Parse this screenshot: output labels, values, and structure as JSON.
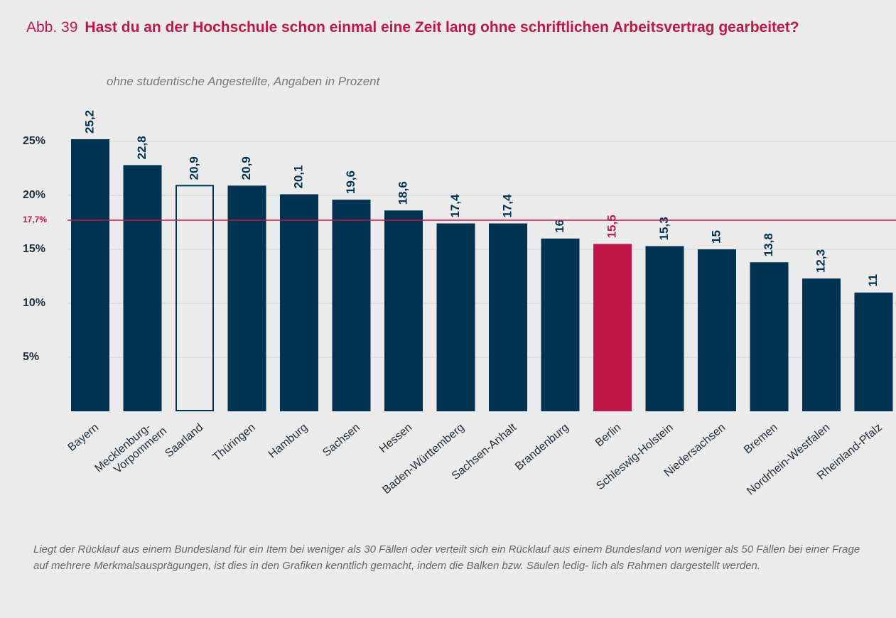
{
  "chart_data": {
    "type": "bar",
    "figure_label": "Abb. 39",
    "title": "Hast du an der Hochschule schon einmal eine Zeit lang ohne schriftlichen Arbeitsvertrag gearbeitet?",
    "subtitle": "ohne studentische Angestellte, Angaben in Prozent",
    "categories": [
      "Bayern",
      "Mecklenburg-\nVorpommern",
      "Saarland",
      "Thüringen",
      "Hamburg",
      "Sachsen",
      "Hessen",
      "Baden-Württemberg",
      "Sachsen-Anhalt",
      "Brandenburg",
      "Berlin",
      "Schleswig-Holstein",
      "Niedersachsen",
      "Bremen",
      "Nordrhein-Westfalen",
      "Rheinland-Pfalz"
    ],
    "values": [
      25.2,
      22.8,
      20.9,
      20.9,
      20.1,
      19.6,
      18.6,
      17.4,
      17.4,
      16,
      15.5,
      15.3,
      15,
      13.8,
      12.3,
      11
    ],
    "value_labels": [
      "25,2",
      "22,8",
      "20,9",
      "20,9",
      "20,1",
      "19,6",
      "18,6",
      "17,4",
      "17,4",
      "16",
      "15,5",
      "15,3",
      "15",
      "13,8",
      "12,3",
      "11"
    ],
    "colors": [
      "#003352",
      "#003352",
      "#003352",
      "#003352",
      "#003352",
      "#003352",
      "#003352",
      "#003352",
      "#003352",
      "#003352",
      "#c0174a",
      "#003352",
      "#003352",
      "#003352",
      "#003352",
      "#003352"
    ],
    "fill_styles": [
      "solid",
      "solid",
      "outline",
      "solid",
      "solid",
      "solid",
      "solid",
      "solid",
      "solid",
      "solid",
      "solid",
      "solid",
      "solid",
      "solid",
      "solid",
      "solid"
    ],
    "ylim": [
      0,
      28
    ],
    "yticks": [
      {
        "value": 5,
        "label": "5%"
      },
      {
        "value": 10,
        "label": "10%"
      },
      {
        "value": 15,
        "label": "15%"
      },
      {
        "value": 20,
        "label": "20%"
      },
      {
        "value": 25,
        "label": "25%"
      }
    ],
    "grid": true,
    "reference_line": {
      "value": 17.7,
      "label": "17,7%",
      "color": "#c0174a"
    },
    "footnote": "Liegt der Rücklauf aus einem Bundesland für ein Item bei weniger als 30 Fällen oder verteilt sich ein Rücklauf aus einem Bundesland von weniger als 50 Fällen bei einer Frage auf mehrere Merkmalsausprägungen, ist dies in den Grafiken kenntlich gemacht, indem die Balken bzw. Säulen ledig- lich als Rahmen dargestellt werden."
  }
}
